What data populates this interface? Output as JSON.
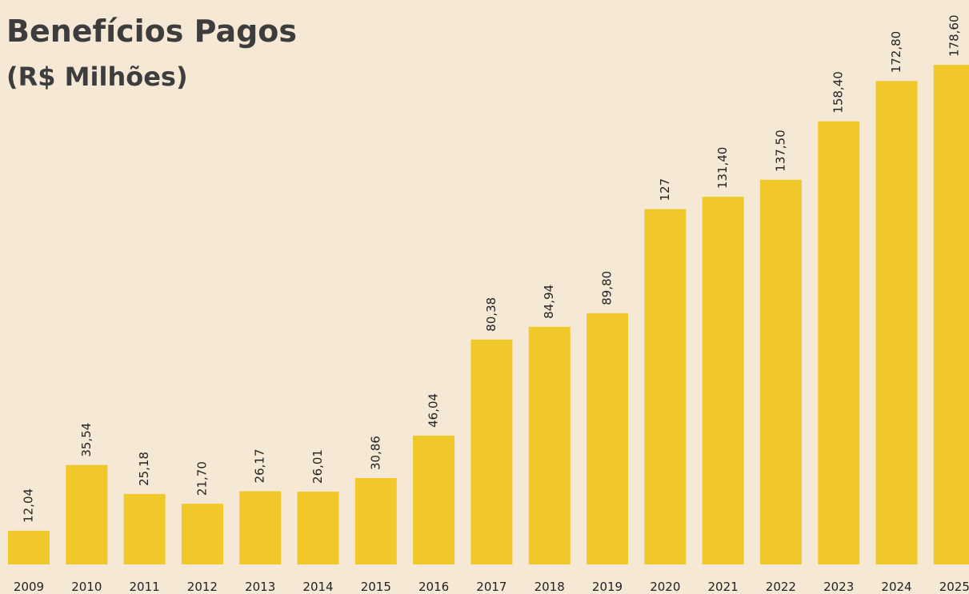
{
  "chart_data": {
    "type": "bar",
    "title": "Benefícios Pagos",
    "subtitle": "(R$ Milhões)",
    "categories": [
      "2009",
      "2010",
      "2011",
      "2012",
      "2013",
      "2014",
      "2015",
      "2016",
      "2017",
      "2018",
      "2019",
      "2020",
      "2021",
      "2022",
      "2023",
      "2024",
      "2025"
    ],
    "values": [
      12.04,
      35.54,
      25.18,
      21.7,
      26.17,
      26.01,
      30.86,
      46.04,
      80.38,
      84.94,
      89.8,
      127,
      131.4,
      137.5,
      158.4,
      172.8,
      178.6
    ],
    "value_labels": [
      "12,04",
      "35,54",
      "25,18",
      "21,70",
      "26,17",
      "26,01",
      "30,86",
      "46,04",
      "80,38",
      "84,94",
      "89,80",
      "127",
      "131,40",
      "137,50",
      "158,40",
      "172,80",
      "178,60"
    ],
    "color": "#f1c829"
  }
}
